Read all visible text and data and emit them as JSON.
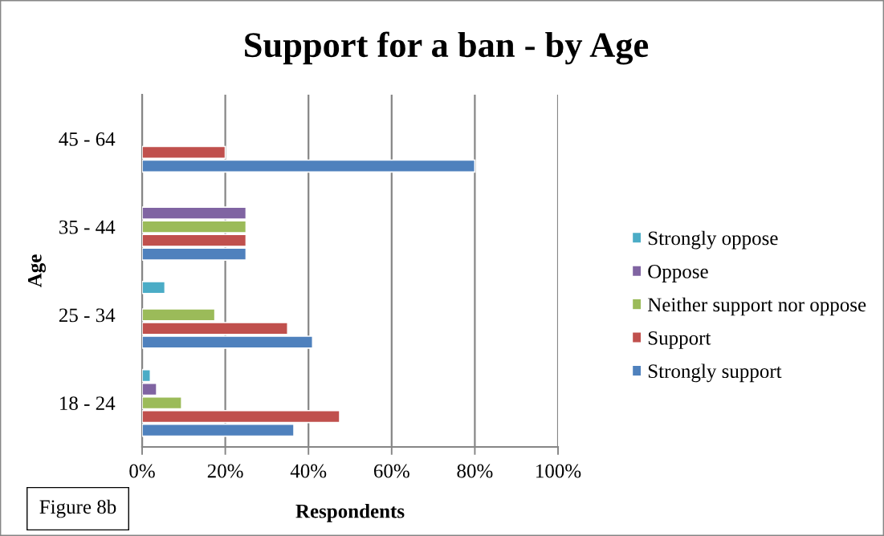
{
  "chart_data": {
    "type": "bar",
    "orientation": "horizontal",
    "title": "Support for a ban - by Age",
    "xlabel": "Respondents",
    "ylabel": "Age",
    "categories": [
      "45 - 64",
      "35 - 44",
      "25 - 34",
      "18 - 24"
    ],
    "series": [
      {
        "name": "Strongly oppose",
        "color": "#4bacc6",
        "values": [
          null,
          null,
          5.5,
          2
        ]
      },
      {
        "name": "Oppose",
        "color": "#8064a2",
        "values": [
          null,
          25,
          null,
          3.5
        ]
      },
      {
        "name": "Neither support nor oppose",
        "color": "#9bbb59",
        "values": [
          null,
          25,
          17.5,
          9.5
        ]
      },
      {
        "name": "Support",
        "color": "#c0504d",
        "values": [
          20,
          25,
          35,
          47.5
        ]
      },
      {
        "name": "Strongly support",
        "color": "#4f81bd",
        "values": [
          80,
          25,
          41,
          36.5
        ]
      }
    ],
    "xlim": [
      0,
      100
    ],
    "xticks": [
      {
        "value": 0,
        "label": "0%"
      },
      {
        "value": 20,
        "label": "20%"
      },
      {
        "value": 40,
        "label": "40%"
      },
      {
        "value": 60,
        "label": "60%"
      },
      {
        "value": 80,
        "label": "80%"
      },
      {
        "value": 100,
        "label": "100%"
      }
    ],
    "grid": "x",
    "legend": "right",
    "annotations": [
      "Figure 8b"
    ]
  }
}
